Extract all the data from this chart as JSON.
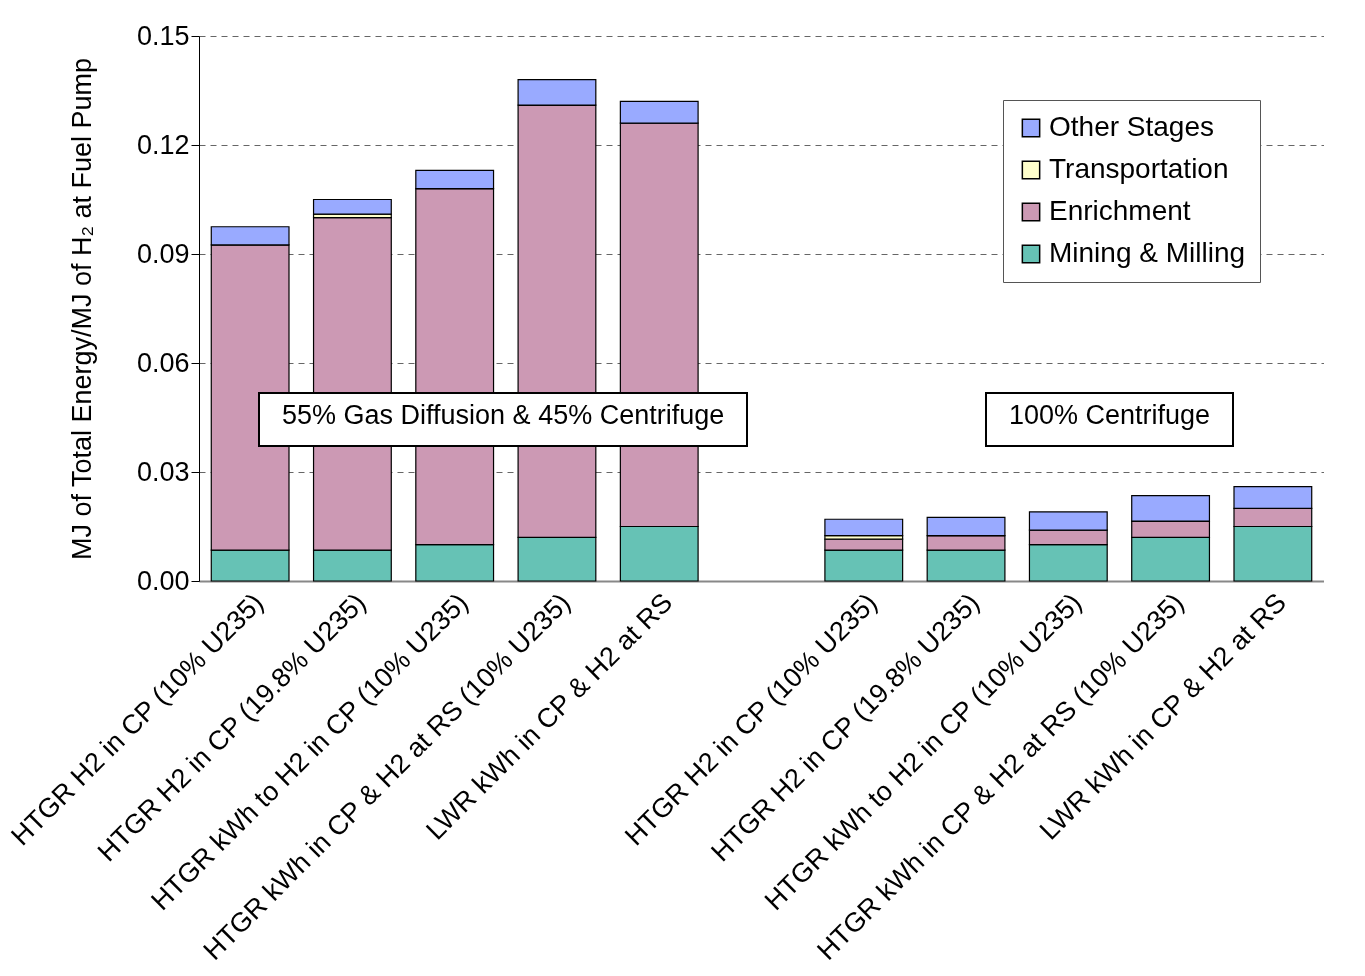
{
  "chart_data": {
    "type": "bar",
    "stacked": true,
    "ylabel": "MJ of Total Energy/MJ of H₂ at Fuel Pump",
    "categories": [
      "HTGR H2 in CP (10% U235)",
      "HTGR H2 in CP (19.8% U235)",
      "HTGR kWh to H2 in CP (10% U235)",
      "HTGR kWh in CP & H2 at RS (10% U235)",
      "LWR kWh in CP & H2 at RS",
      null,
      "HTGR H2 in CP (10% U235)",
      "HTGR H2 in CP (19.8% U235)",
      "HTGR kWh to H2 in CP (10% U235)",
      "HTGR kWh in CP & H2 at RS (10% U235)",
      "LWR kWh in CP & H2 at RS"
    ],
    "series": [
      {
        "name": "Mining & Milling",
        "color": "#66c2b5",
        "values": [
          0.0085,
          0.0085,
          0.01,
          0.012,
          0.015,
          null,
          0.0085,
          0.0085,
          0.01,
          0.012,
          0.015
        ]
      },
      {
        "name": "Enrichment",
        "color": "#cc99b4",
        "values": [
          0.084,
          0.0915,
          0.098,
          0.119,
          0.111,
          null,
          0.003,
          0.004,
          0.004,
          0.0045,
          0.005
        ]
      },
      {
        "name": "Transportation",
        "color": "#ffffcc",
        "values": [
          0,
          0.001,
          0,
          0,
          0,
          null,
          0.001,
          0,
          0,
          0,
          0
        ]
      },
      {
        "name": "Other Stages",
        "color": "#99aaff",
        "values": [
          0.005,
          0.004,
          0.005,
          0.007,
          0.006,
          null,
          0.0045,
          0.005,
          0.005,
          0.007,
          0.006
        ]
      }
    ],
    "ylim": [
      0,
      0.15
    ],
    "yticks": [
      {
        "value": 0,
        "label": "0.00"
      },
      0.03,
      0.06,
      0.09,
      0.12,
      0.15
    ],
    "grid": "y",
    "line_style": "dashed",
    "legend": "top right",
    "annotations": [
      "55% Gas Diffusion & 45% Centrifuge",
      "100% Centrifuge"
    ]
  }
}
